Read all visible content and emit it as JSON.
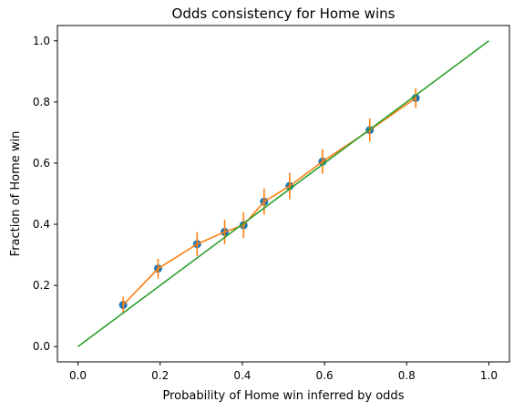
{
  "chart_data": {
    "type": "line",
    "title": "Odds consistency for Home wins",
    "xlabel": "Probability of Home win inferred by odds",
    "ylabel": "Fraction of Home win",
    "xlim": [
      -0.05,
      1.05
    ],
    "ylim": [
      -0.05,
      1.05
    ],
    "xticks": [
      0.0,
      0.2,
      0.4,
      0.6,
      0.8,
      1.0
    ],
    "xtick_labels": [
      "0.0",
      "0.2",
      "0.4",
      "0.6",
      "0.8",
      "1.0"
    ],
    "yticks": [
      0.0,
      0.2,
      0.4,
      0.6,
      0.8,
      1.0
    ],
    "ytick_labels": [
      "0.0",
      "0.2",
      "0.4",
      "0.6",
      "0.8",
      "1.0"
    ],
    "grid": false,
    "legend": false,
    "series": [
      {
        "kind": "scatter",
        "color": "#1f77b4",
        "x": [
          0.11,
          0.195,
          0.29,
          0.357,
          0.403,
          0.453,
          0.515,
          0.595,
          0.71,
          0.822
        ],
        "y": [
          0.136,
          0.255,
          0.335,
          0.375,
          0.397,
          0.474,
          0.525,
          0.605,
          0.708,
          0.813
        ]
      },
      {
        "kind": "line_errorbar",
        "color": "#ff7f0e",
        "x": [
          0.11,
          0.195,
          0.29,
          0.357,
          0.403,
          0.453,
          0.515,
          0.595,
          0.71,
          0.822
        ],
        "y": [
          0.136,
          0.255,
          0.335,
          0.375,
          0.397,
          0.474,
          0.525,
          0.605,
          0.708,
          0.813
        ],
        "yerr": [
          0.027,
          0.032,
          0.039,
          0.04,
          0.042,
          0.043,
          0.043,
          0.04,
          0.038,
          0.032
        ]
      },
      {
        "kind": "line",
        "color": "#2ca02c",
        "x": [
          0.0,
          1.0
        ],
        "y": [
          0.0,
          1.0
        ]
      }
    ]
  }
}
